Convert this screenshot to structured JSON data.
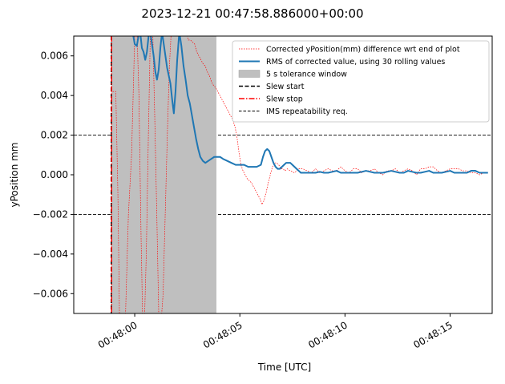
{
  "chart_data": {
    "type": "line",
    "title": "2023-12-21 00:47:58.886000+00:00",
    "xlabel": "Time [UTC]",
    "ylabel": "yPosition mm",
    "x_range_seconds_after_00_47_58": [
      -0.9,
      19.0
    ],
    "ylim": [
      -0.007,
      0.007
    ],
    "x_ticks": [
      {
        "t": 2,
        "label": "00:48:00"
      },
      {
        "t": 7,
        "label": "00:48:05"
      },
      {
        "t": 12,
        "label": "00:48:10"
      },
      {
        "t": 17,
        "label": "00:48:15"
      }
    ],
    "y_ticks": [
      {
        "v": 0.006,
        "label": "0.006"
      },
      {
        "v": 0.004,
        "label": "0.004"
      },
      {
        "v": 0.002,
        "label": "0.002"
      },
      {
        "v": 0.0,
        "label": "0.000"
      },
      {
        "v": -0.002,
        "label": "−0.002"
      },
      {
        "v": -0.004,
        "label": "−0.004"
      },
      {
        "v": -0.006,
        "label": "−0.006"
      }
    ],
    "legend": {
      "placement": "upper right",
      "entries": [
        {
          "label": "Corrected yPosition(mm) difference wrt end of plot",
          "color": "#ff0000",
          "style": "dotted-line"
        },
        {
          "label": "RMS of corrected value, using 30 rolling values",
          "color": "#1f77b4",
          "style": "line"
        },
        {
          "label": "5 s tolerance window",
          "color": "#bfbfbf",
          "style": "patch"
        },
        {
          "label": "Slew start",
          "color": "#000000",
          "style": "dashed-line"
        },
        {
          "label": "Slew stop",
          "color": "#ff0000",
          "style": "dashdot-line"
        },
        {
          "label": "IMS repeatability req.",
          "color": "#000000",
          "style": "thin-dashed-line"
        }
      ]
    },
    "tolerance_window": {
      "x_start": 0.886,
      "x_end": 5.886
    },
    "slew_start_x": 0.886,
    "slew_stop_x": 0.9,
    "ims_req_levels": [
      0.002,
      -0.002
    ],
    "series": [
      {
        "name": "RMS of corrected value, using 30 rolling values",
        "color": "#1f77b4",
        "x": [
          1.9,
          2.0,
          2.1,
          2.18,
          2.26,
          2.34,
          2.42,
          2.5,
          2.58,
          2.66,
          2.74,
          2.82,
          2.9,
          2.98,
          3.06,
          3.14,
          3.22,
          3.3,
          3.38,
          3.46,
          3.54,
          3.62,
          3.7,
          3.78,
          3.86,
          3.94,
          4.02,
          4.12,
          4.22,
          4.32,
          4.42,
          4.52,
          4.62,
          4.72,
          4.82,
          4.92,
          5.02,
          5.12,
          5.24,
          5.36,
          5.5,
          5.64,
          5.78,
          5.92,
          6.06,
          6.2,
          6.4,
          6.6,
          6.8,
          7.0,
          7.2,
          7.4,
          7.6,
          7.8,
          8.0,
          8.1,
          8.2,
          8.3,
          8.4,
          8.5,
          8.6,
          8.7,
          8.8,
          8.9,
          9.0,
          9.1,
          9.2,
          9.3,
          9.4,
          9.5,
          9.6,
          9.7,
          9.8,
          9.9,
          10.0,
          10.2,
          10.4,
          10.6,
          10.8,
          11.0,
          11.2,
          11.4,
          11.6,
          11.8,
          12.0,
          12.2,
          12.4,
          12.6,
          12.8,
          13.0,
          13.2,
          13.4,
          13.6,
          13.8,
          14.0,
          14.2,
          14.4,
          14.6,
          14.8,
          15.0,
          15.2,
          15.4,
          15.6,
          15.8,
          16.0,
          16.2,
          16.4,
          16.6,
          16.8,
          17.0,
          17.2,
          17.4,
          17.6,
          17.8,
          18.0,
          18.2,
          18.4,
          18.6,
          18.8
        ],
        "y": [
          0.0072,
          0.0066,
          0.0065,
          0.007,
          0.0072,
          0.0064,
          0.0062,
          0.0058,
          0.0062,
          0.007,
          0.0072,
          0.0066,
          0.006,
          0.0052,
          0.0048,
          0.0053,
          0.0064,
          0.0072,
          0.0066,
          0.006,
          0.0054,
          0.005,
          0.0046,
          0.0038,
          0.0031,
          0.0042,
          0.0058,
          0.0072,
          0.0065,
          0.0055,
          0.0048,
          0.004,
          0.0036,
          0.003,
          0.0024,
          0.0018,
          0.0013,
          0.0009,
          0.0007,
          0.0006,
          0.0007,
          0.0008,
          0.0009,
          0.0009,
          0.0009,
          0.0008,
          0.0007,
          0.0006,
          0.0005,
          0.0005,
          0.0005,
          0.0004,
          0.0004,
          0.0004,
          0.0005,
          0.0009,
          0.0012,
          0.0013,
          0.0012,
          0.0009,
          0.0006,
          0.0004,
          0.0003,
          0.0003,
          0.0004,
          0.0005,
          0.0006,
          0.0006,
          0.0006,
          0.0005,
          0.0004,
          0.0003,
          0.0002,
          0.0001,
          0.0001,
          0.0001,
          0.0001,
          0.0001,
          0.00015,
          0.0001,
          0.0001,
          0.00015,
          0.0002,
          0.0001,
          0.0001,
          0.0001,
          0.0001,
          0.0001,
          0.00015,
          0.0002,
          0.00015,
          0.0001,
          0.0001,
          0.0001,
          0.00015,
          0.0002,
          0.00015,
          0.0001,
          0.0001,
          0.0002,
          0.00015,
          0.0001,
          0.0001,
          0.00015,
          0.0002,
          0.0001,
          0.0001,
          0.0001,
          0.00015,
          0.0002,
          0.0001,
          0.0001,
          0.0001,
          0.0001,
          0.0002,
          0.0002,
          0.0001,
          0.0001,
          0.0001
        ]
      },
      {
        "name": "Corrected yPosition(mm) difference wrt end of plot",
        "color": "#ff0000",
        "x": [
          0.95,
          1.0,
          1.1,
          1.2,
          1.28,
          1.4,
          1.55,
          1.7,
          1.85,
          2.0,
          2.1,
          2.2,
          2.3,
          2.38,
          2.46,
          2.55,
          2.65,
          2.75,
          2.85,
          2.95,
          3.05,
          3.15,
          3.25,
          3.35,
          3.45,
          3.55,
          3.65,
          3.75,
          3.85,
          3.95,
          4.05,
          4.15,
          4.25,
          4.35,
          4.45,
          4.55,
          4.65,
          4.75,
          4.85,
          4.95,
          5.05,
          5.15,
          5.25,
          5.35,
          5.45,
          5.55,
          5.65,
          5.75,
          5.85,
          5.95,
          6.05,
          6.15,
          6.25,
          6.35,
          6.45,
          6.55,
          6.65,
          6.75,
          6.85,
          6.95,
          7.05,
          7.15,
          7.25,
          7.35,
          7.45,
          7.55,
          7.65,
          7.75,
          7.85,
          7.95,
          8.05,
          8.15,
          8.25,
          8.35,
          8.45,
          8.55,
          8.65,
          8.75,
          8.85,
          8.95,
          9.05,
          9.15,
          9.25,
          9.4,
          9.6,
          9.8,
          10.0,
          10.2,
          10.4,
          10.6,
          10.8,
          11.0,
          11.2,
          11.4,
          11.6,
          11.8,
          12.0,
          12.2,
          12.4,
          12.6,
          12.8,
          13.0,
          13.2,
          13.4,
          13.6,
          13.8,
          14.0,
          14.2,
          14.4,
          14.6,
          14.8,
          15.0,
          15.2,
          15.4,
          15.6,
          15.8,
          16.0,
          16.2,
          16.4,
          16.6,
          16.8,
          17.0,
          17.2,
          17.4,
          17.6,
          17.8,
          18.0,
          18.2,
          18.4,
          18.6,
          18.8
        ],
        "y": [
          0.0042,
          0.0042,
          0.0042,
          -0.001,
          -0.0075,
          -0.0075,
          -0.0075,
          -0.002,
          0.001,
          0.007,
          0.0075,
          0.004,
          -0.003,
          -0.0075,
          -0.0075,
          -0.004,
          0.002,
          0.0075,
          0.0075,
          0.003,
          -0.002,
          -0.0075,
          -0.0075,
          -0.006,
          -0.002,
          0.002,
          0.0055,
          0.0075,
          0.0075,
          0.0075,
          0.0075,
          0.0075,
          0.0075,
          0.0075,
          0.0072,
          0.0068,
          0.0068,
          0.0067,
          0.0066,
          0.0062,
          0.006,
          0.0058,
          0.0056,
          0.0055,
          0.0052,
          0.005,
          0.0047,
          0.0045,
          0.0044,
          0.0042,
          0.004,
          0.0038,
          0.0036,
          0.0034,
          0.0032,
          0.003,
          0.0028,
          0.0025,
          0.002,
          0.0012,
          0.0005,
          0.0002,
          0.0,
          -0.0002,
          -0.0003,
          -0.0004,
          -0.0006,
          -0.0008,
          -0.001,
          -0.0012,
          -0.0015,
          -0.0013,
          -0.0009,
          -0.0004,
          0.0,
          0.0004,
          0.0006,
          0.0006,
          0.0005,
          0.0003,
          0.0003,
          0.0002,
          0.0003,
          0.0002,
          0.0001,
          0.0003,
          0.0003,
          0.0002,
          0.0001,
          0.0003,
          0.0001,
          0.0002,
          0.0003,
          0.0002,
          0.0002,
          0.0004,
          0.0002,
          0.0001,
          0.0003,
          0.0003,
          0.0001,
          0.0002,
          0.0002,
          0.0003,
          0.0001,
          0.0,
          0.0002,
          0.0002,
          0.0003,
          0.0001,
          0.0002,
          0.0003,
          0.0002,
          0.0,
          0.0003,
          0.0003,
          0.0004,
          0.0004,
          0.0002,
          0.0001,
          0.0002,
          0.0003,
          0.0003,
          0.0003,
          0.0002,
          0.0002,
          0.0001,
          0.0001,
          0.0,
          0.0001,
          0.0001
        ]
      }
    ]
  }
}
